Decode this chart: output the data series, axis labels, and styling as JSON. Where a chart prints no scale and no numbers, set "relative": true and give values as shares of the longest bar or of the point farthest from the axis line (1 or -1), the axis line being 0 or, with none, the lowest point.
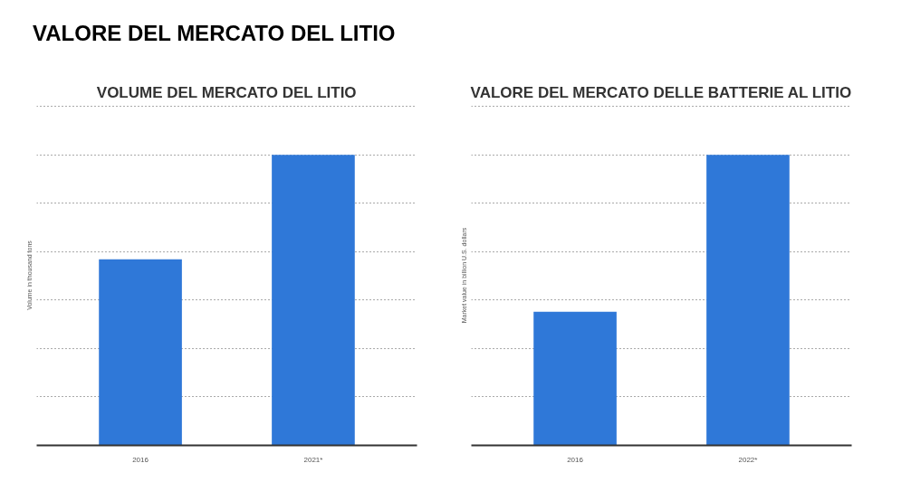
{
  "chart_data": [
    {
      "type": "bar",
      "title": "VALORE DEL MERCATO DEL LITIO",
      "subtitle": "VOLUME DEL MERCATO DEL LITIO",
      "ylabel": "Volume in thousand tons",
      "categories": [
        "2016",
        "2021*"
      ],
      "relative": true,
      "grid": "y",
      "series": [
        {
          "color": "#2f78d8",
          "values": [
            0.64,
            1
          ]
        }
      ]
    },
    {
      "type": "bar",
      "title": "VALORE DEL MERCATO DELLE BATTERIE AL LITIO",
      "ylabel": "Market value in billion U.S. dollars",
      "categories": [
        "2016",
        "2022*"
      ],
      "relative": true,
      "grid": "y",
      "series": [
        {
          "color": "#2f78d8",
          "values": [
            0.46,
            1
          ]
        }
      ]
    }
  ]
}
